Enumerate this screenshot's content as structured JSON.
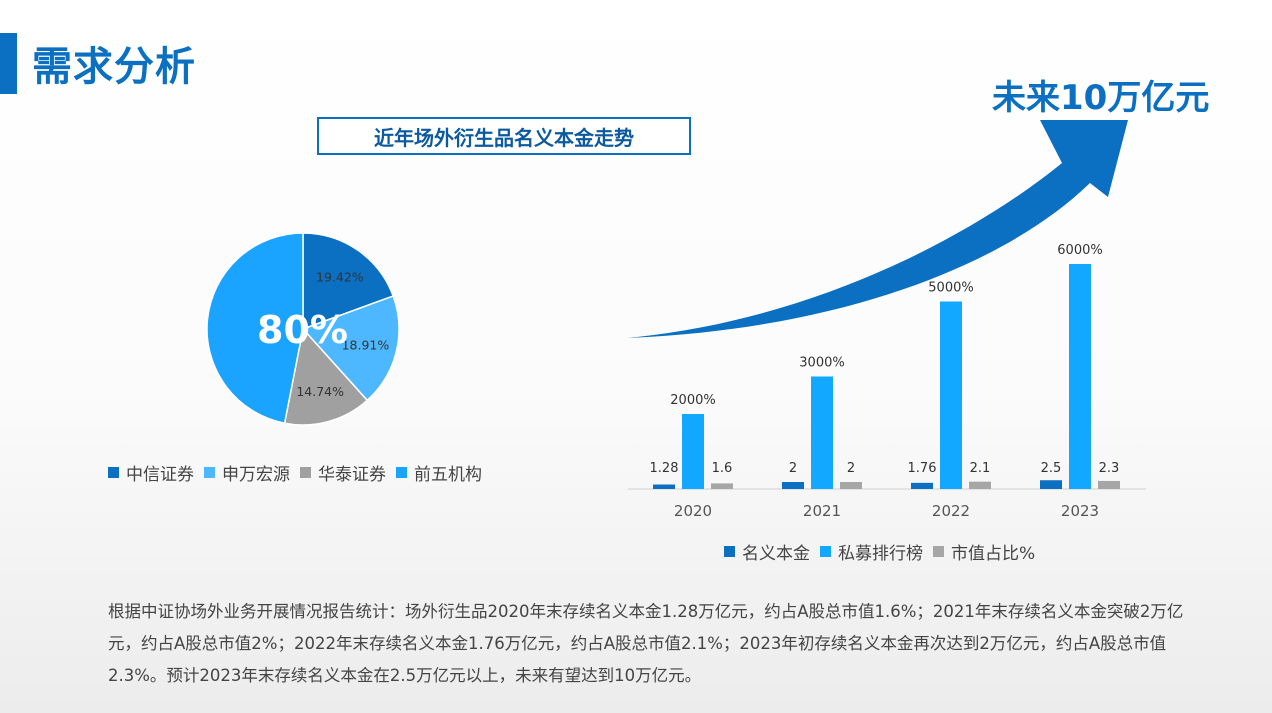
{
  "page": {
    "title": "需求分析",
    "chart_title": "近年场外衍生品名义本金走势",
    "headline": "未来10万亿元",
    "pie_overlay": "80%",
    "paragraph": "根据中证协场外业务开展情况报告统计：场外衍生品2020年末存续名义本金1.28万亿元，约占A股总市值1.6%；2021年末存续名义本金突破2万亿元，约占A股总市值2%；2022年末存续名义本金1.76万亿元，约占A股总市值2.1%；2023年初存续名义本金再次达到2万亿元，约占A股总市值2.3%。预计2023年末存续名义本金在2.5万亿元以上，未来有望达到10万亿元。"
  },
  "colors": {
    "brand": "#0b6fc2",
    "zhongxin": "#0b6fc2",
    "shenwan": "#4db8ff",
    "huatai": "#a0a0a0",
    "top5": "#1aa3ff",
    "notional": "#0b6fc2",
    "private": "#12a8ff",
    "mktcap": "#a6a6a6"
  },
  "chart_data": [
    {
      "type": "pie",
      "categories": [
        "中信证券",
        "申万宏源",
        "华泰证券",
        "前五机构"
      ],
      "labels": [
        "19.42%",
        "18.91%",
        "14.74%",
        ""
      ],
      "values": [
        19.42,
        18.91,
        14.74,
        46.93
      ],
      "legend_position": "bottom"
    },
    {
      "type": "bar",
      "categories": [
        "2020",
        "2021",
        "2022",
        "2023"
      ],
      "series": [
        {
          "name": "名义本金",
          "values": [
            1.28,
            2,
            1.76,
            2.5
          ],
          "labels": [
            "1.28",
            "2",
            "1.76",
            "2.5"
          ]
        },
        {
          "name": "私募排行榜",
          "values": [
            2000,
            3000,
            5000,
            6000
          ],
          "labels": [
            "2000%",
            "3000%",
            "5000%",
            "6000%"
          ]
        },
        {
          "name": "市值占比%",
          "values": [
            1.6,
            2,
            2.1,
            2.3
          ],
          "labels": [
            "1.6",
            "2",
            "2.1",
            "2.3"
          ]
        }
      ],
      "legend_position": "bottom",
      "grid": false
    }
  ]
}
